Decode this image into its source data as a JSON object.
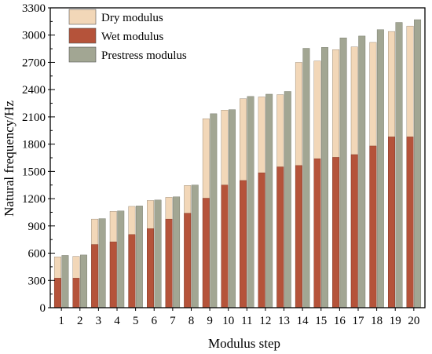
{
  "chart_data": {
    "type": "bar",
    "xlabel": "Modulus step",
    "ylabel": "Natural frequency/Hz",
    "ylim": [
      0,
      3300
    ],
    "yticks": [
      0,
      300,
      600,
      900,
      1200,
      1500,
      1800,
      2100,
      2400,
      2700,
      3000,
      3300
    ],
    "categories": [
      "1",
      "2",
      "3",
      "4",
      "5",
      "6",
      "7",
      "8",
      "9",
      "10",
      "11",
      "12",
      "13",
      "14",
      "15",
      "16",
      "17",
      "18",
      "19",
      "20"
    ],
    "layout_note": "overlaid",
    "legend": {
      "position": "top-left"
    },
    "series": [
      {
        "name": "Dry modulus",
        "color": "#f2d7b8",
        "values": [
          560,
          565,
          975,
          1060,
          1115,
          1180,
          1215,
          1345,
          2080,
          2175,
          2300,
          2320,
          2345,
          2700,
          2715,
          2840,
          2870,
          2920,
          3040,
          3100
        ]
      },
      {
        "name": "Wet modulus",
        "color": "#b5533a",
        "values": [
          325,
          325,
          695,
          725,
          805,
          870,
          975,
          1040,
          1205,
          1350,
          1400,
          1485,
          1550,
          1565,
          1640,
          1655,
          1685,
          1780,
          1880,
          1880
        ]
      },
      {
        "name": "Prestress modulus",
        "color": "#a2a693",
        "values": [
          575,
          580,
          980,
          1065,
          1120,
          1185,
          1220,
          1350,
          2135,
          2180,
          2325,
          2350,
          2380,
          2855,
          2865,
          2970,
          2990,
          3060,
          3140,
          3170
        ]
      }
    ]
  }
}
